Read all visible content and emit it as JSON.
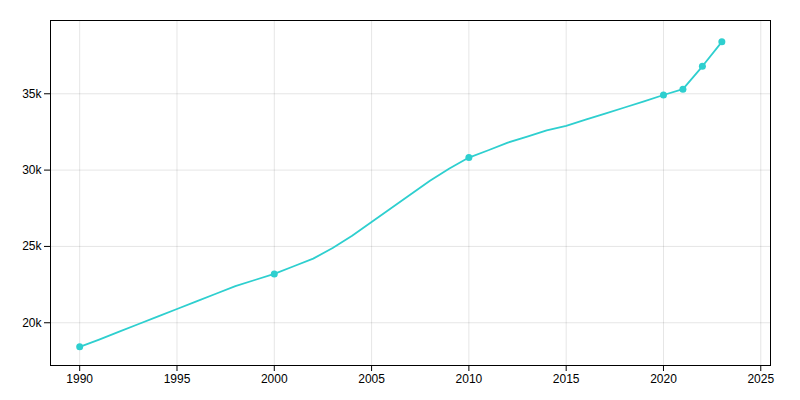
{
  "chart_data": {
    "type": "line",
    "x": [
      1990,
      1991,
      1992,
      1993,
      1994,
      1995,
      1996,
      1997,
      1998,
      1999,
      2000,
      2001,
      2002,
      2003,
      2004,
      2005,
      2006,
      2007,
      2008,
      2009,
      2010,
      2011,
      2012,
      2013,
      2014,
      2015,
      2016,
      2017,
      2018,
      2019,
      2020,
      2021,
      2022,
      2023
    ],
    "values": [
      18426,
      18900,
      19400,
      19900,
      20400,
      20900,
      21400,
      21900,
      22400,
      22800,
      23200,
      23700,
      24200,
      24900,
      25700,
      26600,
      27500,
      28400,
      29300,
      30100,
      30820,
      31300,
      31800,
      32200,
      32600,
      32900,
      33300,
      33700,
      34100,
      34500,
      34920,
      35300,
      36800,
      38400
    ],
    "color": "#2ecfcf",
    "marker": "circle",
    "marker_x": [
      1990,
      2000,
      2010,
      2020,
      2021,
      2022,
      2023
    ],
    "marker_values": [
      18426,
      23200,
      30820,
      34920,
      35300,
      36800,
      38400
    ],
    "xlim": [
      1988.5,
      2025.5
    ],
    "xticks": [
      1990,
      1995,
      2000,
      2005,
      2010,
      2015,
      2020,
      2025
    ],
    "ylim": [
      17200,
      39800
    ],
    "yticks": [
      {
        "value": 20000,
        "label": "20k"
      },
      {
        "value": 25000,
        "label": "25k"
      },
      {
        "value": 30000,
        "label": "30k"
      },
      {
        "value": 35000,
        "label": "35k"
      }
    ],
    "grid": true
  }
}
